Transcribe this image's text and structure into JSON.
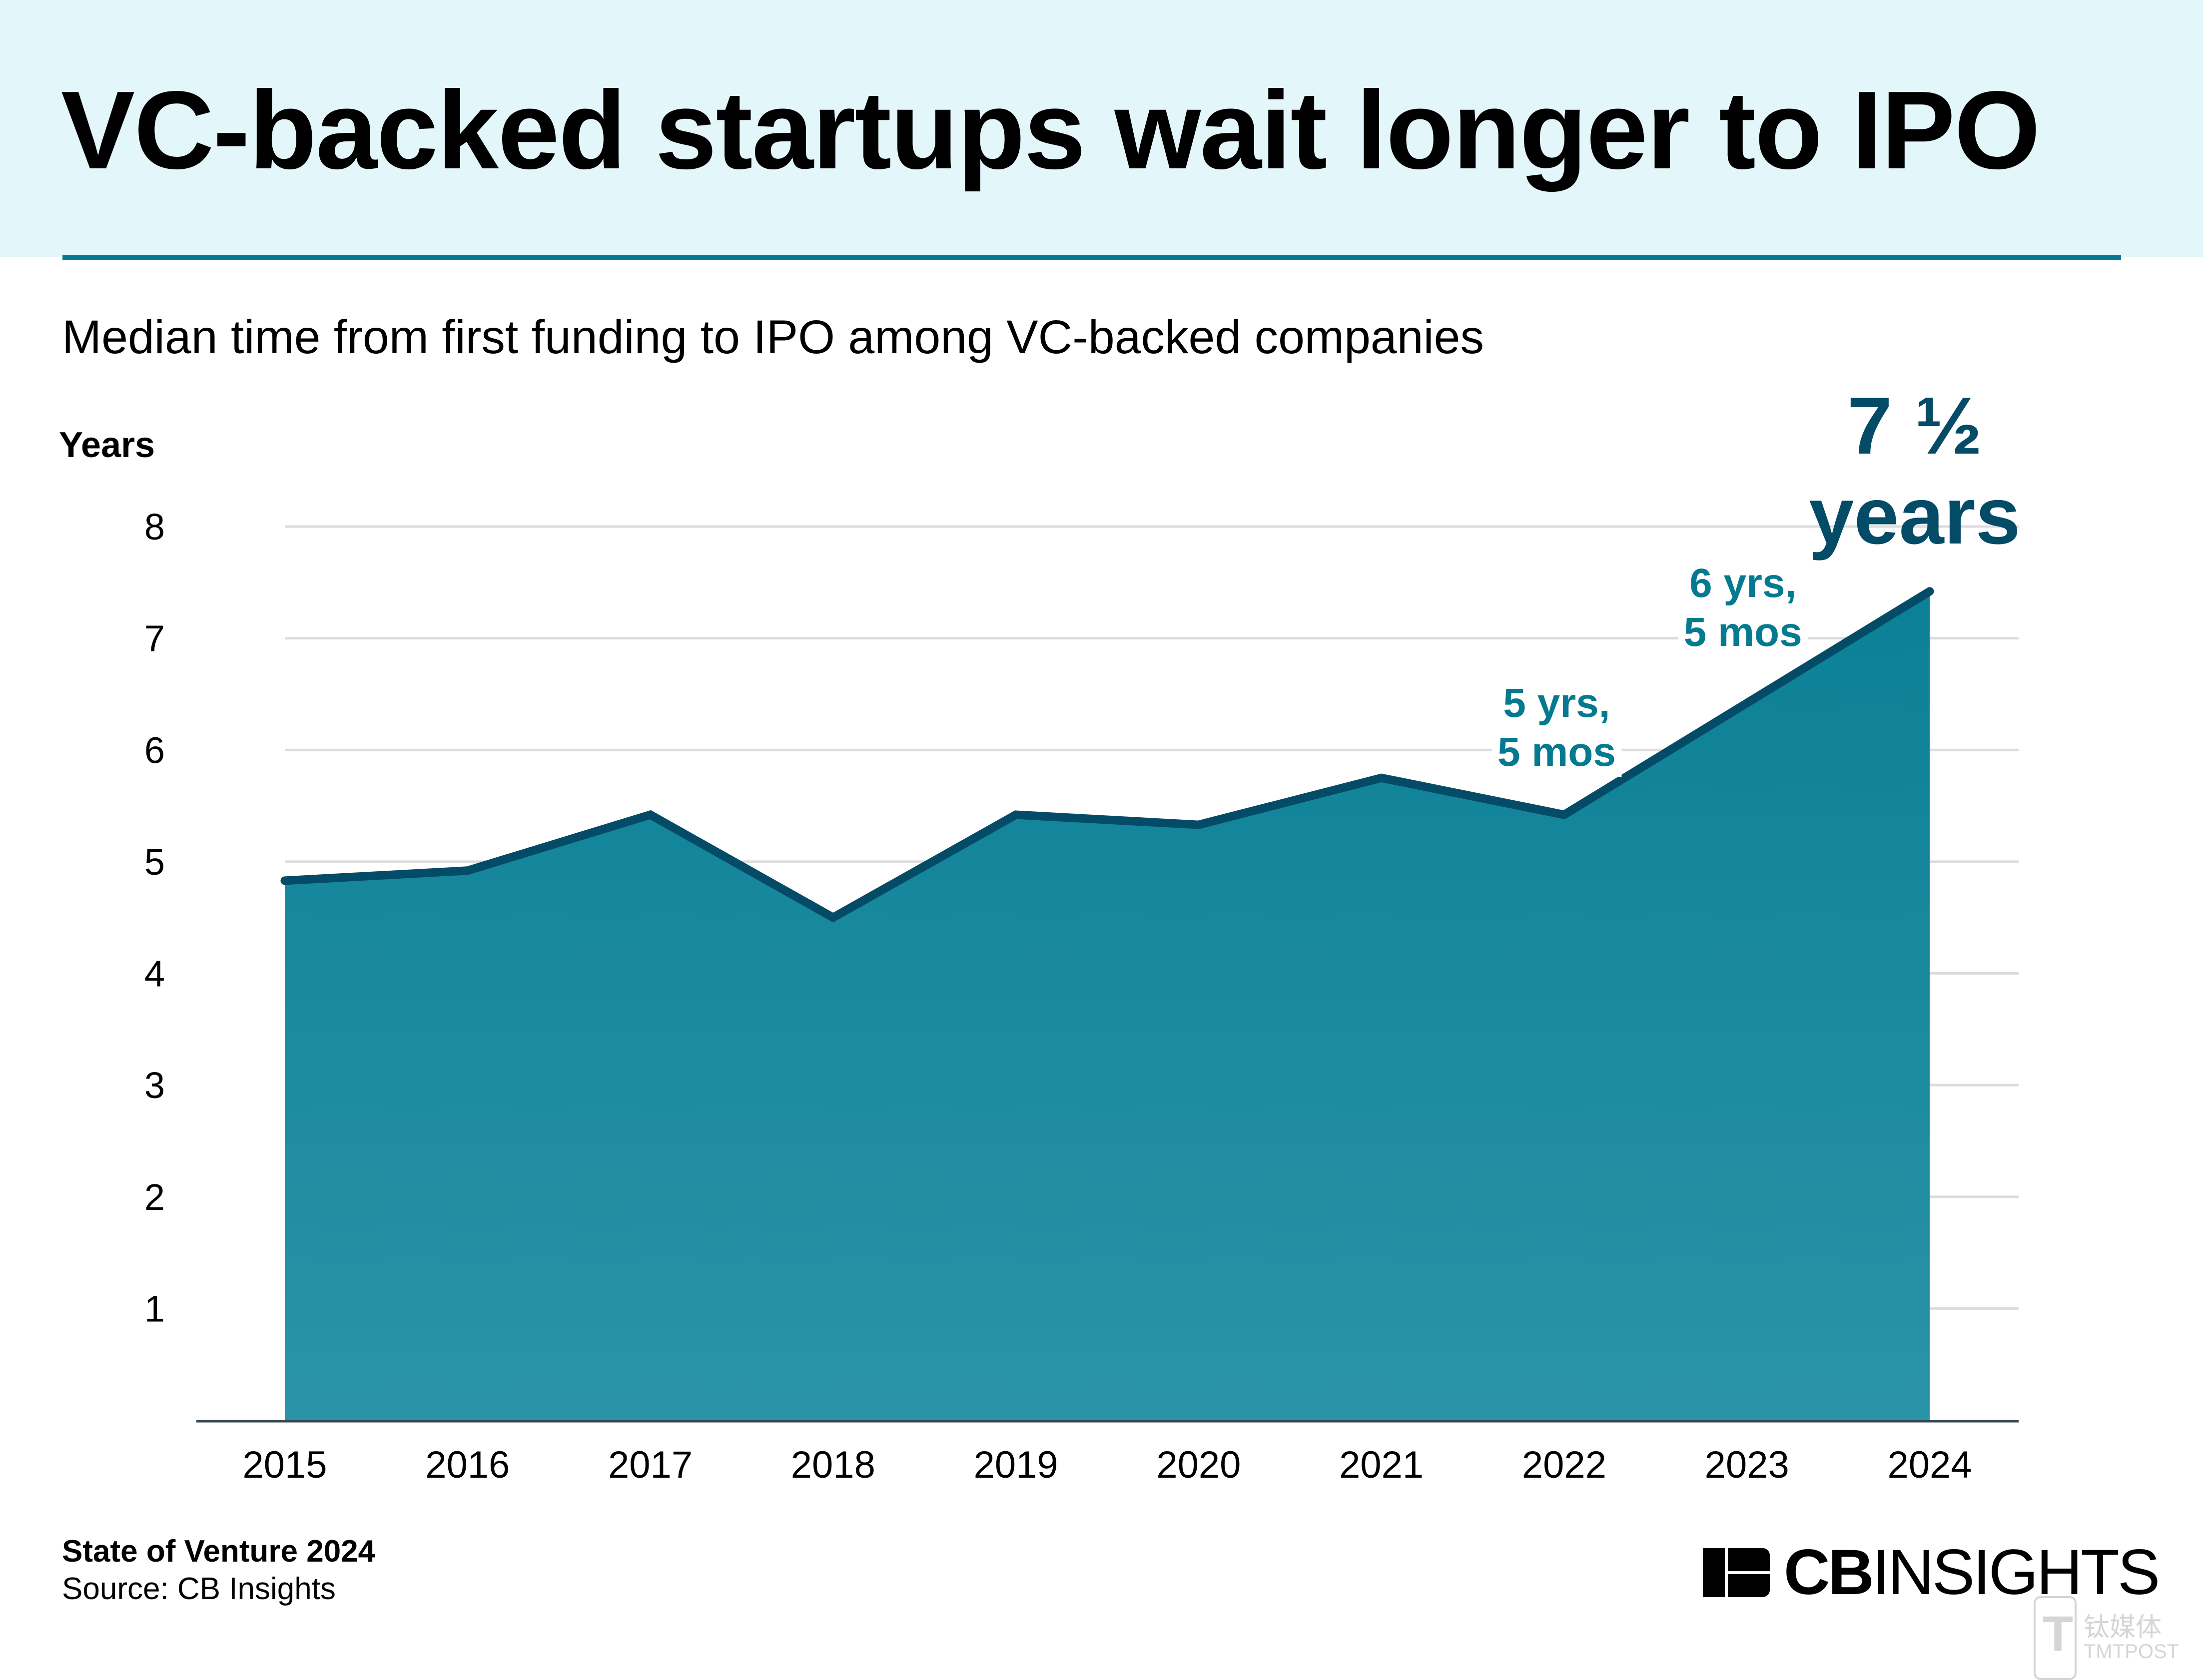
{
  "header": {
    "title": "VC-backed startups wait longer to IPO",
    "subtitle": "Median time from first funding to IPO among VC-backed companies"
  },
  "colors": {
    "header_bg": "#e3f6fa",
    "rule": "#037a8f",
    "area_top": "#0b8096",
    "area_bottom": "#2a93a7",
    "line": "#034b66",
    "annotation_teal": "#037a8f",
    "annotation_navy": "#034b66",
    "gridline": "#dcdcdc",
    "axis": "#37474f"
  },
  "chart_data": {
    "type": "area",
    "title": "VC-backed startups wait longer to IPO",
    "subtitle": "Median time from first funding to IPO among VC-backed companies",
    "xlabel": "",
    "ylabel": "Years",
    "categories": [
      "2015",
      "2016",
      "2017",
      "2018",
      "2019",
      "2020",
      "2021",
      "2022",
      "2023",
      "2024"
    ],
    "series": [
      {
        "name": "Median years from first funding to IPO",
        "values": [
          4.83,
          4.92,
          5.42,
          4.5,
          5.42,
          5.33,
          5.75,
          5.42,
          6.42,
          7.42
        ]
      }
    ],
    "ylim": [
      0,
      8
    ],
    "yticks": [
      1,
      2,
      3,
      4,
      5,
      6,
      7,
      8
    ],
    "grid": true,
    "legend": "none",
    "annotations": [
      {
        "category": "2022",
        "lines": [
          "5 yrs,",
          "5 mos"
        ],
        "style": "teal"
      },
      {
        "category": "2023",
        "lines": [
          "6 yrs,",
          "5 mos"
        ],
        "style": "teal"
      },
      {
        "category": "2024",
        "lines": [
          "7 ½",
          "years"
        ],
        "style": "navy-large"
      }
    ]
  },
  "footer": {
    "report": "State of Venture 2024",
    "source": "Source: CB Insights"
  },
  "logo": {
    "cb": "CB",
    "insights": "INSIGHTS"
  },
  "watermark": {
    "glyph": "T",
    "cn": "钛媒体",
    "en": "TMTPOST"
  }
}
